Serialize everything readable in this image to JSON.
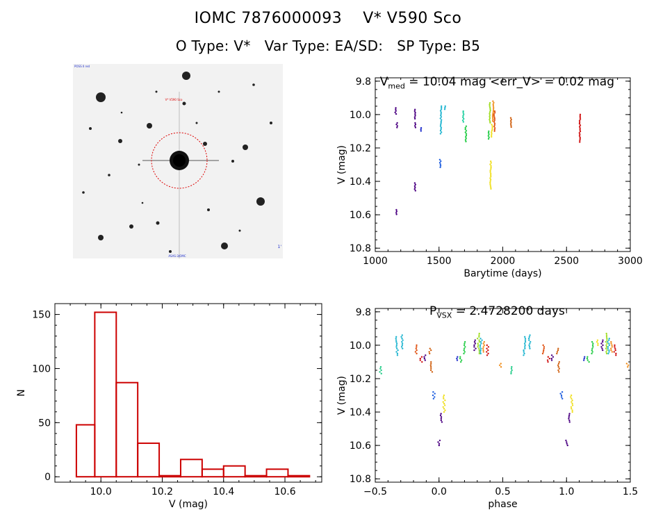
{
  "header": {
    "title": "IOMC 7876000093    V* V590 Sco",
    "subtitle": "O Type: V*   Var Type: EA/SD:   SP Type: B5"
  },
  "image_panel": {
    "target_marker": "V* V590 Sco",
    "corner_labels": [
      "POSS II red",
      "1'",
      "ASAS-3/OMC"
    ]
  },
  "chart_data": [
    {
      "type": "scatter",
      "title": "V_med = 10.04 mag <err_V> = 0.02 mag",
      "title_parts": {
        "v": "V",
        "sub": "med",
        "rest": " = 10.04 mag <err_V> = 0.02 mag"
      },
      "xlabel": "Barytime (days)",
      "ylabel": "V (mag)",
      "xlim": [
        1000,
        3000
      ],
      "ylim": [
        10.82,
        9.78
      ],
      "xticks": [
        "1000",
        "1500",
        "2000",
        "2500",
        "3000"
      ],
      "yticks": [
        "9.8",
        "10.0",
        "10.2",
        "10.4",
        "10.6",
        "10.8"
      ],
      "ytick_values": [
        9.8,
        10.0,
        10.2,
        10.4,
        10.6,
        10.8
      ],
      "xtick_values": [
        1000,
        1500,
        2000,
        2500,
        3000
      ],
      "segments": [
        {
          "x": 1160,
          "y1": 9.96,
          "y2": 10.0,
          "color": "#4b0082"
        },
        {
          "x": 1170,
          "y1": 10.05,
          "y2": 10.08,
          "color": "#4b0082"
        },
        {
          "x": 1165,
          "y1": 10.57,
          "y2": 10.6,
          "color": "#4b0082"
        },
        {
          "x": 1310,
          "y1": 9.97,
          "y2": 10.03,
          "color": "#4b0082"
        },
        {
          "x": 1315,
          "y1": 10.05,
          "y2": 10.08,
          "color": "#4b0082"
        },
        {
          "x": 1312,
          "y1": 10.41,
          "y2": 10.46,
          "color": "#4b0082"
        },
        {
          "x": 1360,
          "y1": 10.08,
          "y2": 10.1,
          "color": "#1f2fcc"
        },
        {
          "x": 1510,
          "y1": 10.27,
          "y2": 10.32,
          "color": "#1f5fe0"
        },
        {
          "x": 1515,
          "y1": 9.95,
          "y2": 10.12,
          "color": "#1fb5d0"
        },
        {
          "x": 1545,
          "y1": 9.95,
          "y2": 9.97,
          "color": "#1fb5d0"
        },
        {
          "x": 1690,
          "y1": 9.98,
          "y2": 10.05,
          "color": "#1fcfa0"
        },
        {
          "x": 1710,
          "y1": 10.07,
          "y2": 10.17,
          "color": "#22cc44"
        },
        {
          "x": 1890,
          "y1": 10.1,
          "y2": 10.15,
          "color": "#22cc44"
        },
        {
          "x": 1900,
          "y1": 9.93,
          "y2": 10.05,
          "color": "#a0dc20"
        },
        {
          "x": 1905,
          "y1": 10.28,
          "y2": 10.45,
          "color": "#f0e020"
        },
        {
          "x": 1915,
          "y1": 10.06,
          "y2": 10.14,
          "color": "#f0e020"
        },
        {
          "x": 1925,
          "y1": 9.92,
          "y2": 10.04,
          "color": "#f09020"
        },
        {
          "x": 1935,
          "y1": 9.98,
          "y2": 10.1,
          "color": "#e05010"
        },
        {
          "x": 2065,
          "y1": 10.02,
          "y2": 10.08,
          "color": "#d06010"
        },
        {
          "x": 2605,
          "y1": 10.0,
          "y2": 10.17,
          "color": "#d01010"
        }
      ]
    },
    {
      "type": "scatter",
      "title": "P_VSX = 2.4728200 days",
      "title_parts": {
        "v": "P",
        "sub": "VSX",
        "rest": " = 2.4728200 days"
      },
      "xlabel": "phase",
      "ylabel": "V (mag)",
      "xlim": [
        -0.5,
        1.5
      ],
      "ylim": [
        10.82,
        9.78
      ],
      "xticks": [
        "−0.5",
        "0.0",
        "0.5",
        "1.0",
        "1.5"
      ],
      "xtick_values": [
        -0.5,
        0.0,
        0.5,
        1.0,
        1.5
      ],
      "yticks": [
        "9.8",
        "10.0",
        "10.2",
        "10.4",
        "10.6",
        "10.8"
      ],
      "ytick_values": [
        9.8,
        10.0,
        10.2,
        10.4,
        10.6,
        10.8
      ],
      "clusters": [
        {
          "x": -0.46,
          "y1": 10.13,
          "y2": 10.17,
          "color": "#22cc88"
        },
        {
          "x": -0.33,
          "y1": 9.95,
          "y2": 10.06,
          "color": "#1fb5d0"
        },
        {
          "x": -0.29,
          "y1": 9.94,
          "y2": 10.02,
          "color": "#1fb5d0"
        },
        {
          "x": -0.18,
          "y1": 10.0,
          "y2": 10.05,
          "color": "#e05010"
        },
        {
          "x": -0.14,
          "y1": 10.07,
          "y2": 10.1,
          "color": "#d01010"
        },
        {
          "x": -0.11,
          "y1": 10.06,
          "y2": 10.09,
          "color": "#4b0082"
        },
        {
          "x": -0.07,
          "y1": 10.02,
          "y2": 10.05,
          "color": "#d06010"
        },
        {
          "x": -0.06,
          "y1": 10.1,
          "y2": 10.16,
          "color": "#d06010"
        },
        {
          "x": -0.04,
          "y1": 10.28,
          "y2": 10.32,
          "color": "#1f5fe0"
        },
        {
          "x": 0.0,
          "y1": 10.57,
          "y2": 10.6,
          "color": "#4b0082"
        },
        {
          "x": 0.02,
          "y1": 10.41,
          "y2": 10.46,
          "color": "#4b0082"
        },
        {
          "x": 0.04,
          "y1": 10.3,
          "y2": 10.4,
          "color": "#f0e020"
        },
        {
          "x": 0.14,
          "y1": 10.07,
          "y2": 10.09,
          "color": "#1f2fcc"
        },
        {
          "x": 0.17,
          "y1": 10.07,
          "y2": 10.1,
          "color": "#22cc44"
        },
        {
          "x": 0.2,
          "y1": 9.98,
          "y2": 10.05,
          "color": "#22cc44"
        },
        {
          "x": 0.28,
          "y1": 9.97,
          "y2": 10.03,
          "color": "#4b0082"
        },
        {
          "x": 0.31,
          "y1": 9.93,
          "y2": 10.05,
          "color": "#a0dc20"
        },
        {
          "x": 0.33,
          "y1": 9.96,
          "y2": 10.05,
          "color": "#1fb5d0"
        },
        {
          "x": 0.35,
          "y1": 9.98,
          "y2": 10.04,
          "color": "#f09020"
        },
        {
          "x": 0.38,
          "y1": 10.0,
          "y2": 10.06,
          "color": "#d01010"
        },
        {
          "x": 0.48,
          "y1": 10.11,
          "y2": 10.13,
          "color": "#f09020"
        },
        {
          "x": 0.57,
          "y1": 10.13,
          "y2": 10.17,
          "color": "#22cc88"
        },
        {
          "x": 0.67,
          "y1": 9.95,
          "y2": 10.06,
          "color": "#1fb5d0"
        },
        {
          "x": 0.71,
          "y1": 9.94,
          "y2": 10.02,
          "color": "#1fb5d0"
        },
        {
          "x": 0.82,
          "y1": 10.0,
          "y2": 10.05,
          "color": "#e05010"
        },
        {
          "x": 0.86,
          "y1": 10.07,
          "y2": 10.1,
          "color": "#d01010"
        },
        {
          "x": 0.89,
          "y1": 10.06,
          "y2": 10.09,
          "color": "#4b0082"
        },
        {
          "x": 0.93,
          "y1": 10.02,
          "y2": 10.05,
          "color": "#d06010"
        },
        {
          "x": 0.94,
          "y1": 10.1,
          "y2": 10.16,
          "color": "#d06010"
        },
        {
          "x": 0.96,
          "y1": 10.28,
          "y2": 10.32,
          "color": "#1f5fe0"
        },
        {
          "x": 1.0,
          "y1": 10.57,
          "y2": 10.6,
          "color": "#4b0082"
        },
        {
          "x": 1.02,
          "y1": 10.41,
          "y2": 10.46,
          "color": "#4b0082"
        },
        {
          "x": 1.04,
          "y1": 10.3,
          "y2": 10.4,
          "color": "#f0e020"
        },
        {
          "x": 1.14,
          "y1": 10.07,
          "y2": 10.09,
          "color": "#1f2fcc"
        },
        {
          "x": 1.17,
          "y1": 10.07,
          "y2": 10.1,
          "color": "#22cc44"
        },
        {
          "x": 1.2,
          "y1": 9.98,
          "y2": 10.05,
          "color": "#22cc44"
        },
        {
          "x": 1.24,
          "y1": 9.97,
          "y2": 10.0,
          "color": "#f0e020"
        },
        {
          "x": 1.28,
          "y1": 9.97,
          "y2": 10.03,
          "color": "#4b0082"
        },
        {
          "x": 1.31,
          "y1": 9.93,
          "y2": 10.05,
          "color": "#a0dc20"
        },
        {
          "x": 1.33,
          "y1": 9.96,
          "y2": 10.05,
          "color": "#1fb5d0"
        },
        {
          "x": 1.35,
          "y1": 9.98,
          "y2": 10.04,
          "color": "#f09020"
        },
        {
          "x": 1.38,
          "y1": 10.0,
          "y2": 10.06,
          "color": "#d01010"
        },
        {
          "x": 1.48,
          "y1": 10.11,
          "y2": 10.13,
          "color": "#f09020"
        }
      ]
    },
    {
      "type": "bar",
      "title": "",
      "xlabel": "V (mag)",
      "ylabel": "N",
      "xlim": [
        9.85,
        10.72
      ],
      "ylim": [
        -5,
        160
      ],
      "xticks": [
        "10.0",
        "10.2",
        "10.4",
        "10.6"
      ],
      "xtick_values": [
        10.0,
        10.2,
        10.4,
        10.6
      ],
      "yticks": [
        "0",
        "50",
        "100",
        "150"
      ],
      "ytick_values": [
        0,
        50,
        100,
        150
      ],
      "bin_edges": [
        9.92,
        9.98,
        10.05,
        10.12,
        10.19,
        10.26,
        10.33,
        10.4,
        10.47,
        10.54,
        10.61,
        10.68
      ],
      "values": [
        48,
        152,
        87,
        31,
        1,
        16,
        7,
        10,
        1,
        7,
        1
      ],
      "color": "#cc0000"
    }
  ]
}
